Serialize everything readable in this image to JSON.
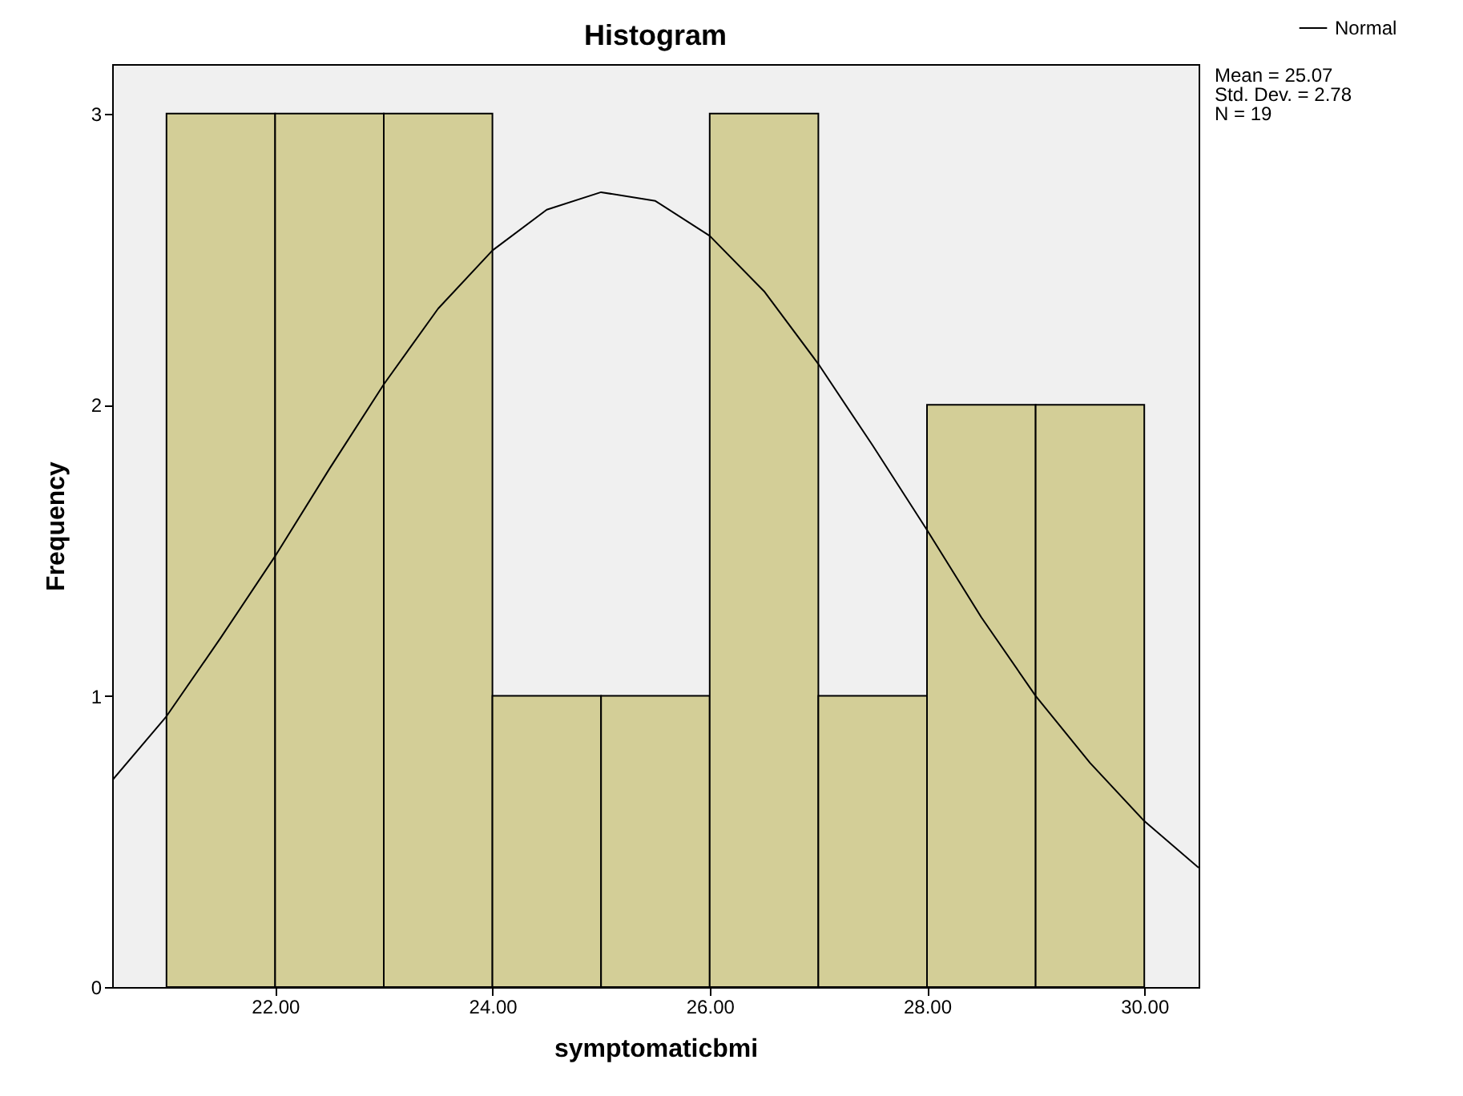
{
  "chart_data": {
    "type": "histogram",
    "title": "Histogram",
    "xlabel": "symptomaticbmi",
    "ylabel": "Frequency",
    "bins": [
      21,
      22,
      23,
      24,
      25,
      26,
      27,
      28,
      29,
      30
    ],
    "values": [
      3,
      3,
      3,
      1,
      1,
      3,
      1,
      2,
      2
    ],
    "color": "#d3ce97",
    "series": [
      {
        "name": "Normal",
        "type": "line",
        "color": "#000000",
        "x": [
          20.5,
          21,
          21.5,
          22,
          22.5,
          23,
          23.5,
          24,
          24.5,
          25,
          25.5,
          26,
          26.5,
          27,
          27.5,
          28,
          28.5,
          29,
          29.5,
          30,
          30.5
        ],
        "values": [
          0.71,
          0.93,
          1.2,
          1.48,
          1.78,
          2.07,
          2.33,
          2.53,
          2.67,
          2.73,
          2.7,
          2.58,
          2.39,
          2.14,
          1.86,
          1.57,
          1.27,
          1.0,
          0.77,
          0.57,
          0.41
        ]
      }
    ],
    "xlim": [
      20.5,
      30.5
    ],
    "xticks": [
      {
        "value": 22,
        "label": "22.00"
      },
      {
        "value": 24,
        "label": "24.00"
      },
      {
        "value": 26,
        "label": "26.00"
      },
      {
        "value": 28,
        "label": "28.00"
      },
      {
        "value": 30,
        "label": "30.00"
      }
    ],
    "ylim": [
      0,
      3.17
    ],
    "yticks": [
      0,
      1,
      2,
      3
    ],
    "grid": false,
    "legend": "top right",
    "annotations": [
      "Mean = 25.07",
      "Std. Dev. = 2.78",
      "N = 19"
    ]
  }
}
